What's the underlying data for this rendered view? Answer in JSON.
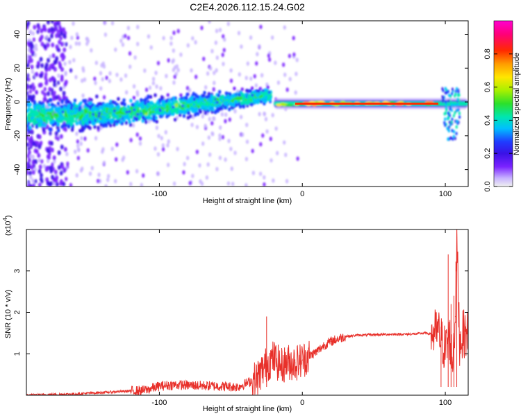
{
  "figure_title": "C2E4.2026.112.15.24.G02",
  "colors": {
    "snr_line": "#e8302a",
    "frame": "#000000"
  },
  "chart_data": [
    {
      "type": "heatmap",
      "name": "spectrogram",
      "xlabel": "Height of straight line (km)",
      "ylabel": "Frequency (Hz)",
      "xlim": [
        -193,
        116
      ],
      "ylim": [
        -50,
        48
      ],
      "xticks": [
        -100,
        0,
        100
      ],
      "xtick_labels": [
        "-100",
        "0",
        "100"
      ],
      "yticks": [
        -40,
        -20,
        0,
        20,
        40
      ],
      "ytick_labels": [
        "-40",
        "-20",
        "0",
        "20",
        "40"
      ],
      "colorbar": {
        "label": "Normalized spectral amplitude",
        "range": [
          0,
          1
        ],
        "ticks": [
          0.0,
          0.2,
          0.4,
          0.6,
          0.8
        ],
        "tick_labels": [
          "0.0",
          "0.2",
          "0.4",
          "0.6",
          "0.8"
        ],
        "colormap": [
          "#f0f0f0",
          "#c8b4ff",
          "#7a22ff",
          "#3a12e6",
          "#1f3cff",
          "#00bfff",
          "#00e6b0",
          "#2be02b",
          "#a8f000",
          "#ffe600",
          "#ff9c00",
          "#ff2a00",
          "#ff007a",
          "#ff00d0"
        ]
      },
      "ridge": [
        {
          "x": -193,
          "f": -8
        },
        {
          "x": -160,
          "f": -8
        },
        {
          "x": -120,
          "f": -6
        },
        {
          "x": -80,
          "f": -2
        },
        {
          "x": -40,
          "f": 2
        },
        {
          "x": -22,
          "f": 4
        },
        {
          "x": -20,
          "f": -1
        },
        {
          "x": 0,
          "f": -1
        },
        {
          "x": 100,
          "f": -1
        },
        {
          "x": 116,
          "f": -1
        }
      ]
    },
    {
      "type": "line",
      "name": "snr",
      "xlabel": "Height of straight line (km)",
      "ylabel": "SNR (10 * v/v)",
      "exponent_label": "(x10",
      "exponent_power": "4",
      "exponent_close": ")",
      "xlim": [
        -193,
        116
      ],
      "ylim": [
        0,
        4
      ],
      "xticks": [
        -100,
        0,
        100
      ],
      "xtick_labels": [
        "-100",
        "0",
        "100"
      ],
      "yticks": [
        1,
        2,
        3
      ],
      "ytick_labels": [
        "1",
        "2",
        "3"
      ],
      "x": [
        -193,
        -160,
        -110,
        -100,
        -90,
        -60,
        -45,
        -32,
        -28,
        -25,
        -20,
        -15,
        -10,
        -5,
        0,
        5,
        10,
        15,
        20,
        30,
        40,
        50,
        60,
        70,
        80,
        85,
        90,
        95,
        100,
        103,
        105,
        107,
        108,
        110,
        113,
        116
      ],
      "y": [
        0.0,
        0.03,
        0.12,
        0.22,
        0.25,
        0.22,
        0.2,
        0.4,
        0.6,
        0.75,
        0.9,
        0.7,
        0.8,
        0.78,
        0.85,
        0.95,
        1.05,
        1.2,
        1.3,
        1.42,
        1.45,
        1.46,
        1.47,
        1.47,
        1.48,
        1.5,
        1.48,
        1.52,
        1.1,
        1.4,
        0.8,
        1.9,
        3.8,
        1.3,
        1.5,
        1.45
      ],
      "spikes": [
        {
          "x": -25,
          "y": 1.9
        },
        {
          "x": 97,
          "y": 1.65
        },
        {
          "x": 102,
          "y": 3.4
        },
        {
          "x": 104,
          "y": 2.2
        },
        {
          "x": 106,
          "y": 2.4
        },
        {
          "x": 108,
          "y": 3.9
        }
      ]
    }
  ]
}
